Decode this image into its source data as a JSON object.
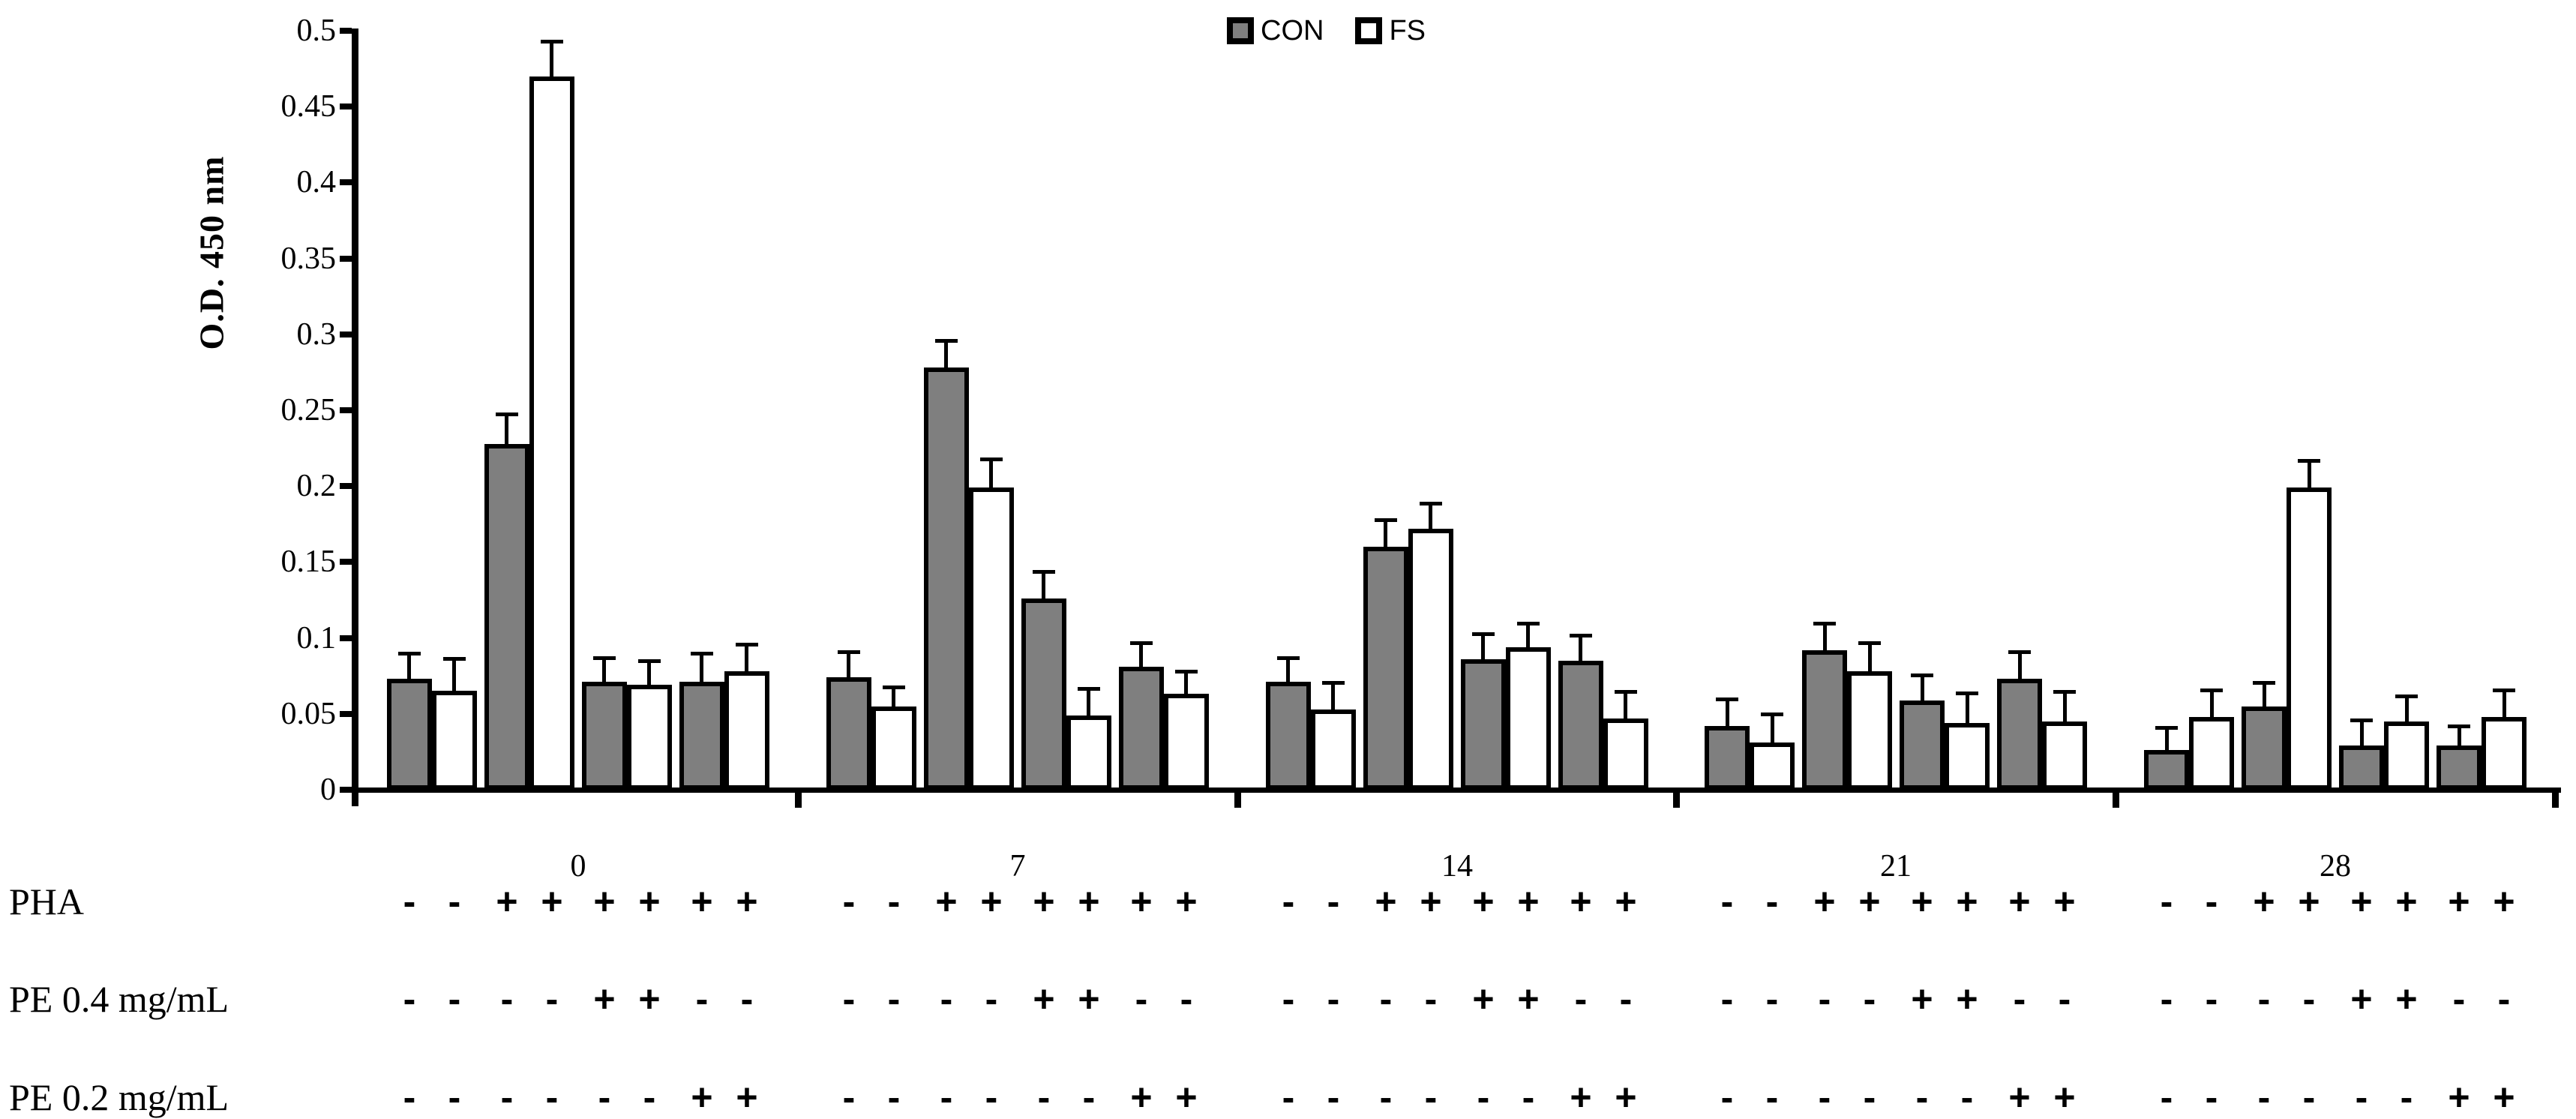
{
  "chart_data": {
    "type": "bar",
    "title": "",
    "ylabel": "O.D. 450 nm",
    "xlabel": "",
    "ylim": [
      0,
      0.5
    ],
    "ytick_step": 0.05,
    "ytick_labels": [
      "0",
      "0.05",
      "0.1",
      "0.15",
      "0.2",
      "0.25",
      "0.3",
      "0.35",
      "0.4",
      "0.45",
      "0.5"
    ],
    "grid": "off",
    "legend_position": "top-center",
    "categories": [
      "0",
      "7",
      "14",
      "21",
      "28"
    ],
    "bars_per_group": 8,
    "group_structure": "4 condition pairs per timepoint, each pair = [CON, FS]",
    "legend": [
      {
        "label": "CON",
        "fill": "#7f7f7f"
      },
      {
        "label": "FS",
        "fill": "#ffffff"
      }
    ],
    "series": [
      {
        "name": "CON",
        "fill": "#7f7f7f",
        "values": [
          [
            0.073,
            0.228,
            0.071,
            0.071
          ],
          [
            0.074,
            0.278,
            0.126,
            0.081
          ],
          [
            0.071,
            0.16,
            0.086,
            0.085
          ],
          [
            0.042,
            0.092,
            0.059,
            0.073
          ],
          [
            0.026,
            0.055,
            0.029,
            0.029
          ]
        ],
        "errors": [
          [
            0.017,
            0.02,
            0.016,
            0.019
          ],
          [
            0.017,
            0.018,
            0.018,
            0.016
          ],
          [
            0.016,
            0.018,
            0.017,
            0.017
          ],
          [
            0.018,
            0.018,
            0.017,
            0.018
          ],
          [
            0.015,
            0.016,
            0.017,
            0.013
          ]
        ]
      },
      {
        "name": "FS",
        "fill": "#ffffff",
        "values": [
          [
            0.065,
            0.47,
            0.069,
            0.078
          ],
          [
            0.055,
            0.199,
            0.049,
            0.063
          ],
          [
            0.053,
            0.172,
            0.094,
            0.047
          ],
          [
            0.031,
            0.078,
            0.044,
            0.045
          ],
          [
            0.048,
            0.199,
            0.045,
            0.048
          ]
        ],
        "errors": [
          [
            0.021,
            0.023,
            0.016,
            0.018
          ],
          [
            0.013,
            0.019,
            0.018,
            0.015
          ],
          [
            0.018,
            0.017,
            0.016,
            0.018
          ],
          [
            0.019,
            0.019,
            0.02,
            0.02
          ],
          [
            0.018,
            0.018,
            0.017,
            0.018
          ]
        ]
      }
    ],
    "condition_rows": [
      {
        "label": "PHA",
        "signs": [
          "-",
          "-",
          "+",
          "+",
          "+",
          "+",
          "+",
          "+"
        ]
      },
      {
        "label": "PE 0.4 mg/mL",
        "signs": [
          "-",
          "-",
          "-",
          "-",
          "+",
          "+",
          "-",
          "-"
        ]
      },
      {
        "label": "PE 0.2 mg/mL",
        "signs": [
          "-",
          "-",
          "-",
          "-",
          "-",
          "-",
          "+",
          "+"
        ]
      }
    ]
  }
}
